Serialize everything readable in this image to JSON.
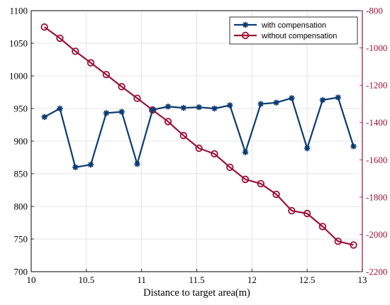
{
  "chart_data": {
    "type": "line",
    "title": "",
    "xlabel": "Distance to target area(m)",
    "ylabel_left": "",
    "ylabel_right": "",
    "xlim": [
      10,
      13
    ],
    "ylim_left": [
      700,
      1100
    ],
    "ylim_right": [
      -2200,
      -800
    ],
    "xticks": [
      10,
      10.5,
      11,
      11.5,
      12,
      12.5,
      13
    ],
    "xtick_labels": [
      "10",
      "10.5",
      "11",
      "11.5",
      "12",
      "12.5",
      "13"
    ],
    "yticks_left": [
      700,
      750,
      800,
      850,
      900,
      950,
      1000,
      1050,
      1100
    ],
    "yticks_left_labels": [
      "700",
      "750",
      "800",
      "850",
      "900",
      "950",
      "1000",
      "1050",
      "1100"
    ],
    "yticks_right": [
      -2200,
      -2000,
      -1800,
      -1600,
      -1400,
      -1200,
      -1000,
      -800
    ],
    "yticks_right_labels": [
      "-2200",
      "-2000",
      "-1800",
      "-1600",
      "-1400",
      "-1200",
      "-1000",
      "-800"
    ],
    "grid": true,
    "legend_position": "top-right",
    "series": [
      {
        "name": "with compensation",
        "axis": "left",
        "color": "#0b3b73",
        "marker": "asterisk",
        "x": [
          10.12,
          10.26,
          10.4,
          10.54,
          10.68,
          10.82,
          10.96,
          11.1,
          11.24,
          11.38,
          11.52,
          11.66,
          11.8,
          11.94,
          12.08,
          12.22,
          12.36,
          12.5,
          12.64,
          12.78,
          12.92
        ],
        "values": [
          937,
          950,
          860,
          864,
          943,
          945,
          865,
          948,
          953,
          951,
          952,
          950,
          955,
          883,
          957,
          959,
          966,
          889,
          963,
          967,
          892
        ]
      },
      {
        "name": "without compensation",
        "axis": "right",
        "color": "#9b1239",
        "marker": "circle",
        "x": [
          10.12,
          10.26,
          10.4,
          10.54,
          10.68,
          10.82,
          10.96,
          11.1,
          11.24,
          11.38,
          11.52,
          11.66,
          11.8,
          11.94,
          12.08,
          12.22,
          12.36,
          12.5,
          12.64,
          12.78,
          12.92
        ],
        "values": [
          -888,
          -948,
          -1018,
          -1080,
          -1143,
          -1208,
          -1270,
          -1333,
          -1395,
          -1470,
          -1538,
          -1568,
          -1640,
          -1705,
          -1728,
          -1785,
          -1873,
          -1888,
          -1958,
          -2037,
          -2057
        ]
      }
    ]
  }
}
